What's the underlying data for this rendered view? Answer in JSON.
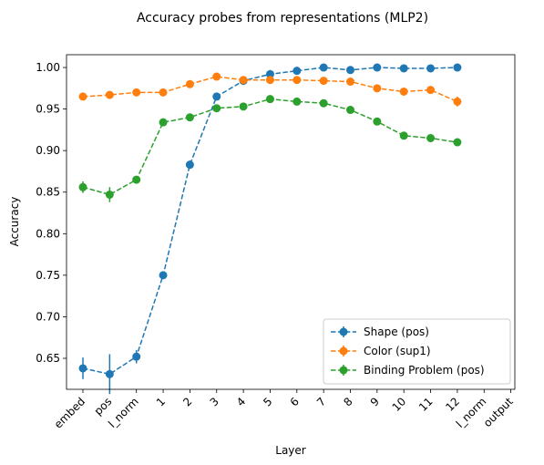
{
  "chart_data": {
    "type": "line",
    "title": "Accuracy probes from representations (MLP2)",
    "x_label": "Layer",
    "y_label": "Accuracy",
    "categories": [
      "embed",
      "pos",
      "l_norm",
      "1",
      "2",
      "3",
      "4",
      "5",
      "6",
      "7",
      "8",
      "9",
      "10",
      "11",
      "12",
      "l_norm",
      "output"
    ],
    "series": [
      {
        "name": "Shape (pos)",
        "color": "#1f77b4",
        "values": [
          0.638,
          0.631,
          0.652,
          0.75,
          0.883,
          0.965,
          0.984,
          0.992,
          0.996,
          1.0,
          0.997,
          1.0,
          0.999,
          0.999,
          1.0,
          null,
          null
        ],
        "errors": [
          0.013,
          0.024,
          0.008,
          0.004,
          0.005,
          0.003,
          0.002,
          0.005,
          0.002,
          0.002,
          0.002,
          0.002,
          0.002,
          0.002,
          0.002,
          null,
          null
        ]
      },
      {
        "name": "Color (sup1)",
        "color": "#ff7f0e",
        "values": [
          0.965,
          0.967,
          0.97,
          0.97,
          0.98,
          0.989,
          0.985,
          0.985,
          0.985,
          0.984,
          0.983,
          0.975,
          0.971,
          0.973,
          0.959,
          null,
          null
        ],
        "errors": [
          0.002,
          0.002,
          0.002,
          0.002,
          0.002,
          0.002,
          0.002,
          0.002,
          0.002,
          0.002,
          0.002,
          0.002,
          0.002,
          0.002,
          0.006,
          null,
          null
        ]
      },
      {
        "name": "Binding Problem (pos)",
        "color": "#2ca02c",
        "values": [
          0.856,
          0.847,
          0.865,
          0.934,
          0.94,
          0.951,
          0.953,
          0.962,
          0.959,
          0.957,
          0.949,
          0.935,
          0.918,
          0.915,
          0.91,
          null,
          null
        ],
        "errors": [
          0.007,
          0.009,
          0.003,
          0.002,
          0.002,
          0.002,
          0.002,
          0.002,
          0.002,
          0.002,
          0.002,
          0.002,
          0.003,
          0.005,
          0.002,
          null,
          null
        ]
      }
    ],
    "ylim": [
      0.6127,
      1.0154
    ],
    "yticks": [
      0.65,
      {
        "value": 0.7,
        "label": "0.70"
      },
      0.75,
      {
        "value": 0.8,
        "label": "0.80"
      },
      0.85,
      {
        "value": 0.9,
        "label": "0.90"
      },
      0.95,
      {
        "value": 1.0,
        "label": "1.00"
      }
    ],
    "legend": "lower right"
  }
}
